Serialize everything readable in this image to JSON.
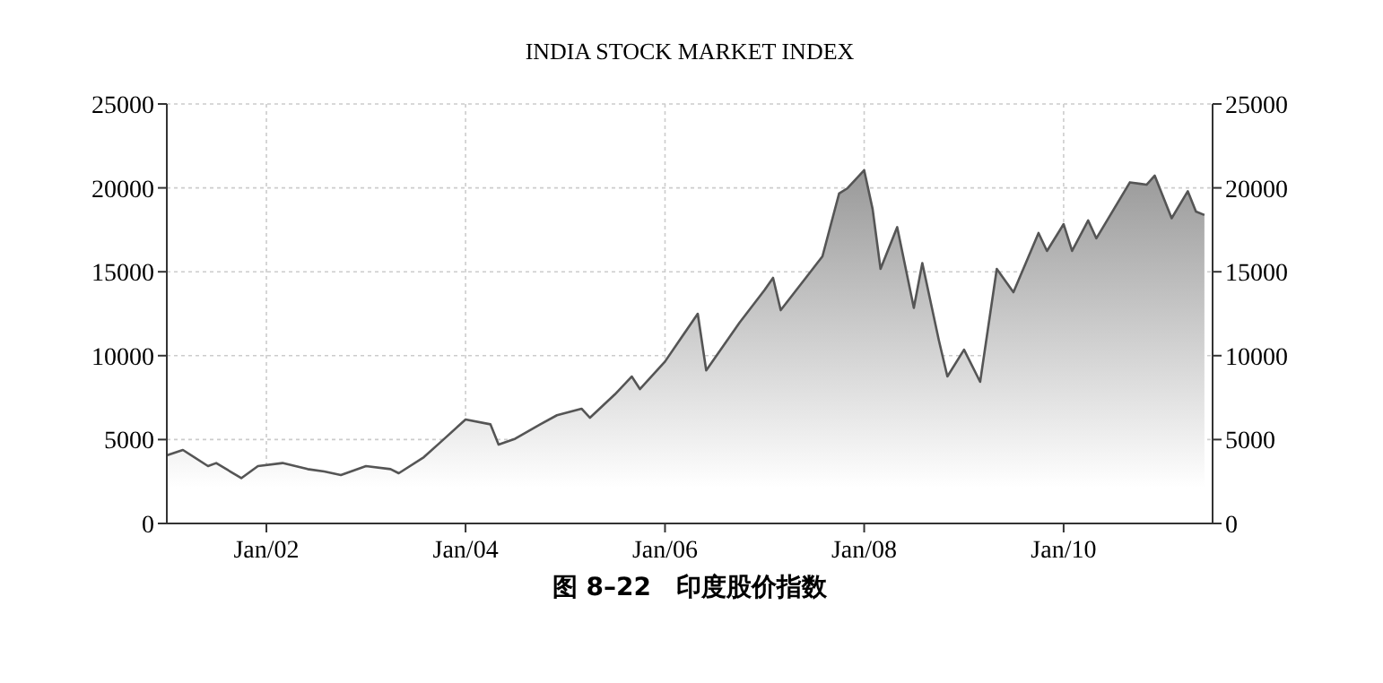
{
  "chart_data": {
    "type": "area",
    "title": "INDIA STOCK MARKET INDEX",
    "annotations": [
      "图 8–22　印度股价指数"
    ],
    "x": [
      "2001-01",
      "2001-03",
      "2001-06",
      "2001-07",
      "2001-10",
      "2001-12",
      "2002-03",
      "2002-06",
      "2002-08",
      "2002-10",
      "2003-01",
      "2003-04",
      "2003-05",
      "2003-08",
      "2003-10",
      "2004-01",
      "2004-04",
      "2004-05",
      "2004-07",
      "2004-10",
      "2004-12",
      "2005-03",
      "2005-04",
      "2005-07",
      "2005-09",
      "2005-10",
      "2006-01",
      "2006-05",
      "2006-06",
      "2006-10",
      "2007-01",
      "2007-02",
      "2007-03",
      "2007-06",
      "2007-08",
      "2007-10",
      "2007-11",
      "2008-01",
      "2008-02",
      "2008-03",
      "2008-05",
      "2008-07",
      "2008-08",
      "2008-10",
      "2008-11",
      "2009-01",
      "2009-03",
      "2009-05",
      "2009-07",
      "2009-10",
      "2009-11",
      "2010-01",
      "2010-02",
      "2010-04",
      "2010-05",
      "2010-09",
      "2010-11",
      "2010-12",
      "2011-02",
      "2011-04",
      "2011-05",
      "2011-06"
    ],
    "series": [
      {
        "color": "#555555",
        "values": [
          4060,
          4380,
          3420,
          3600,
          2700,
          3420,
          3600,
          3240,
          3100,
          2890,
          3420,
          3240,
          2990,
          3950,
          4840,
          6200,
          5910,
          4700,
          5050,
          5910,
          6450,
          6840,
          6300,
          7690,
          8760,
          8010,
          9650,
          12500,
          9120,
          11970,
          13920,
          14640,
          12710,
          14640,
          15920,
          19660,
          19980,
          21050,
          18730,
          15170,
          17660,
          12850,
          15520,
          10900,
          8760,
          10360,
          8440,
          15170,
          13780,
          17310,
          16240,
          17840,
          16240,
          18060,
          16990,
          20330,
          20190,
          20730,
          18190,
          19800,
          18590,
          18380
        ]
      }
    ],
    "xlim": [
      "2001-01",
      "2011-07"
    ],
    "xticks": [
      {
        "value": "2002-01",
        "label": "Jan/02"
      },
      {
        "value": "2004-01",
        "label": "Jan/04"
      },
      {
        "value": "2006-01",
        "label": "Jan/06"
      },
      {
        "value": "2008-01",
        "label": "Jan/08"
      },
      {
        "value": "2010-01",
        "label": "Jan/10"
      }
    ],
    "ylim": [
      0,
      25000
    ],
    "yticks": [
      0,
      5000,
      10000,
      15000,
      20000,
      25000
    ],
    "y2lim": [
      0,
      25000
    ],
    "y2ticks": [
      0,
      5000,
      10000,
      15000,
      20000,
      25000
    ],
    "grid": true
  }
}
